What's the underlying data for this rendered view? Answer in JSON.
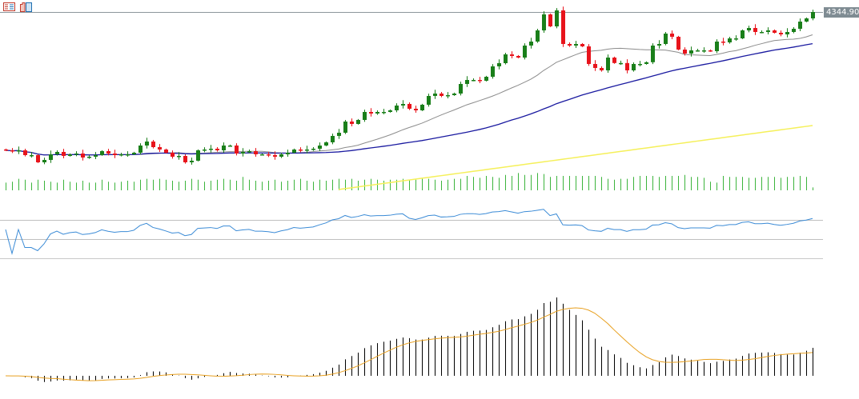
{
  "toolbar": {
    "icons": [
      "list-icon",
      "template-icon"
    ]
  },
  "chart_data": {
    "type": "candlestick",
    "title": "",
    "current_price_label": "4344.90",
    "colors": {
      "up": "#1a7f1a",
      "down": "#e8141c",
      "ma_fast": "#8c8c8c",
      "ma_mid": "#1a1aa0",
      "ma_slow": "#f5f05a",
      "volume": "#3cb43c",
      "rsi": "#3b8bd6",
      "macd_hist": "#000000",
      "macd_signal": "#e8a020",
      "price_line": "#8c969c"
    },
    "closes": [
      3393.4,
      3387.9,
      3393.4,
      3360.4,
      3360.4,
      3310.9,
      3327.4,
      3365.9,
      3382.4,
      3354.9,
      3365.9,
      3371.4,
      3343.9,
      3349.4,
      3360.4,
      3387.9,
      3371.4,
      3360.4,
      3365.9,
      3365.9,
      3376.9,
      3426.4,
      3453.9,
      3415.4,
      3398.9,
      3376.9,
      3349.4,
      3354.9,
      3310.9,
      3321.9,
      3393.4,
      3398.9,
      3404.4,
      3393.4,
      3426.4,
      3426.4,
      3371.4,
      3382.4,
      3387.9,
      3365.9,
      3365.9,
      3360.4,
      3349.4,
      3365.9,
      3376.9,
      3398.9,
      3393.4,
      3398.9,
      3404.4,
      3426.4,
      3448.4,
      3492.4,
      3514.4,
      3591.4,
      3574.9,
      3602.4,
      3657.4,
      3646.4,
      3657.4,
      3657.4,
      3668.4,
      3701.4,
      3712.4,
      3679.4,
      3668.4,
      3706.9,
      3767.4,
      3783.9,
      3767.4,
      3772.9,
      3783.9,
      3849.9,
      3877.4,
      3877.4,
      3871.9,
      3899.4,
      3970.9,
      3992.9,
      4053.4,
      4042.4,
      4031.4,
      4113.9,
      4141.4,
      4218.4,
      4328.4,
      4245.9,
      4355.9,
      4124.9,
      4113.9,
      4124.9,
      4108.4,
      3987.4,
      3959.9,
      3943.4,
      4031.4,
      3993.9,
      3993.9,
      3943.4,
      3987.4,
      3987.4,
      3999.4,
      4113.9,
      4124.9,
      4196.4,
      4174.4,
      4086.4,
      4058.9,
      4080.9,
      4080.9,
      4080.9,
      4075.4,
      4141.4,
      4135.9,
      4163.4,
      4163.4,
      4218.4,
      4234.9,
      4207.4,
      4207.4,
      4218.4,
      4201.9,
      4190.9,
      4207.4,
      4229.4,
      4278.9,
      4300.9,
      4344.9
    ],
    "volume_relative": [
      40,
      45,
      60,
      55,
      40,
      55,
      50,
      45,
      40,
      55,
      45,
      40,
      50,
      40,
      40,
      55,
      45,
      40,
      45,
      50,
      45,
      55,
      60,
      55,
      60,
      55,
      50,
      45,
      50,
      60,
      55,
      45,
      50,
      55,
      60,
      55,
      50,
      70,
      55,
      50,
      45,
      50,
      55,
      45,
      50,
      55,
      60,
      50,
      45,
      55,
      50,
      55,
      60,
      55,
      60,
      50,
      55,
      60,
      55,
      50,
      55,
      55,
      60,
      55,
      55,
      60,
      60,
      55,
      50,
      55,
      60,
      60,
      75,
      70,
      65,
      75,
      70,
      65,
      80,
      75,
      90,
      80,
      80,
      90,
      85,
      70,
      75,
      75,
      75,
      75,
      75,
      75,
      75,
      70,
      60,
      55,
      60,
      60,
      70,
      75,
      75,
      75,
      70,
      75,
      75,
      75,
      80,
      70,
      70,
      65,
      45,
      40,
      75,
      70,
      70,
      70,
      65,
      65,
      70,
      70,
      70,
      65,
      70,
      70,
      75,
      70,
      15
    ],
    "moving_averages": {
      "fast_period": 20,
      "mid_period": 50
    },
    "ma_slow": {
      "from_index": 52,
      "start": 3124,
      "end": 3564
    },
    "rsi": {
      "period": 14,
      "levels": [
        70,
        30
      ]
    },
    "macd": {
      "fast": 12,
      "slow": 26,
      "signal": 9
    }
  }
}
